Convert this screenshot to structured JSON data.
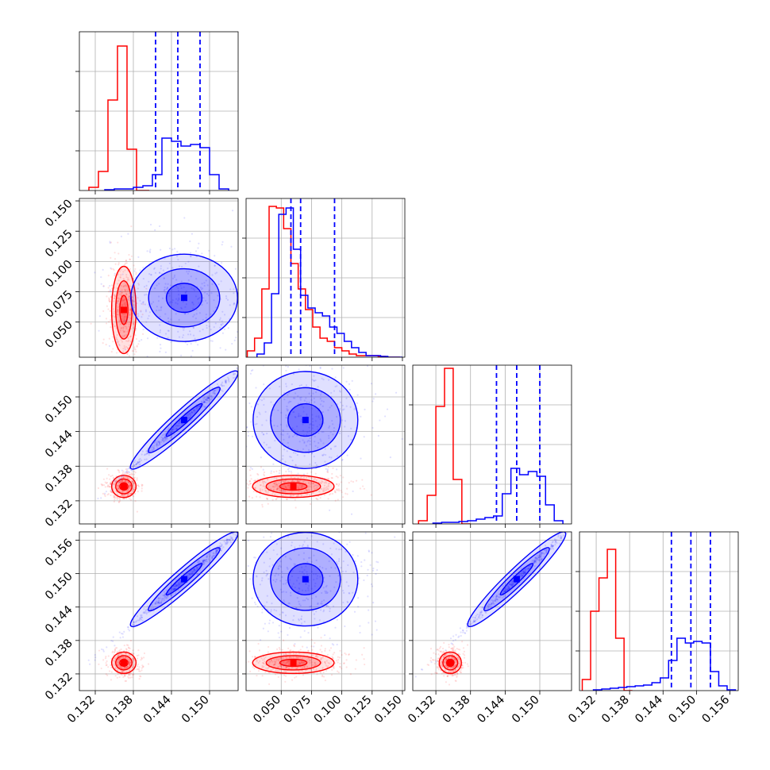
{
  "chart_data": {
    "type": "corner",
    "n_params": 4,
    "grid": true,
    "series": [
      {
        "color": "#ff0000",
        "hist": [
          {
            "edges": [
              0.131,
              0.1325,
              0.134,
              0.1355,
              0.137,
              0.1385,
              0.1405
            ],
            "counts": [
              0.02,
              0.12,
              0.57,
              0.91,
              0.26,
              0.0
            ]
          },
          {
            "edges": [
              0.022,
              0.028,
              0.034,
              0.04,
              0.046,
              0.052,
              0.058,
              0.064,
              0.07,
              0.076,
              0.082,
              0.088,
              0.094,
              0.1,
              0.106,
              0.112,
              0.118,
              0.124,
              0.13,
              0.136,
              0.142,
              0.148
            ],
            "counts": [
              0.04,
              0.12,
              0.43,
              0.95,
              0.94,
              0.81,
              0.59,
              0.43,
              0.3,
              0.19,
              0.12,
              0.1,
              0.06,
              0.04,
              0.02,
              0.01,
              0.01,
              0.01,
              0.005,
              0.0,
              0.0
            ]
          },
          {
            "edges": [
              0.129,
              0.1305,
              0.132,
              0.1335,
              0.135,
              0.1365,
              0.138
            ],
            "counts": [
              0.02,
              0.18,
              0.74,
              0.98,
              0.28,
              0.0
            ]
          },
          {
            "edges": [
              0.1295,
              0.131,
              0.1325,
              0.134,
              0.1355,
              0.137,
              0.1385
            ],
            "counts": [
              0.07,
              0.5,
              0.71,
              0.89,
              0.33,
              0.0
            ]
          }
        ],
        "scatter_centers": [
          {
            "x": 0.1365,
            "y": 0.06,
            "sx": 0.0008,
            "sy": 0.015
          },
          {
            "x": 0.1365,
            "y": 0.1345,
            "sx": 0.0008,
            "sy": 0.0008
          },
          {
            "x": 0.06,
            "y": 0.1345,
            "sx": 0.014,
            "sy": 0.0008
          },
          {
            "x": 0.1365,
            "y": 0.134,
            "sx": 0.0008,
            "sy": 0.0008
          },
          {
            "x": 0.06,
            "y": 0.134,
            "sx": 0.014,
            "sy": 0.0008
          },
          {
            "x": 0.1345,
            "y": 0.134,
            "sx": 0.0008,
            "sy": 0.0008
          }
        ]
      },
      {
        "color": "#0000ff",
        "hist": [
          {
            "edges": [
              0.1335,
              0.135,
              0.1365,
              0.138,
              0.1395,
              0.141,
              0.1425,
              0.144,
              0.1455,
              0.147,
              0.1485,
              0.15,
              0.1515,
              0.153
            ],
            "counts": [
              0.005,
              0.01,
              0.01,
              0.02,
              0.03,
              0.1,
              0.33,
              0.31,
              0.28,
              0.29,
              0.27,
              0.1,
              0.01
            ]
          },
          {
            "edges": [
              0.03,
              0.036,
              0.042,
              0.048,
              0.054,
              0.06,
              0.066,
              0.072,
              0.078,
              0.084,
              0.09,
              0.096,
              0.102,
              0.108,
              0.114,
              0.12,
              0.126,
              0.132,
              0.138,
              0.144,
              0.15
            ],
            "counts": [
              0.02,
              0.09,
              0.4,
              0.9,
              0.94,
              0.68,
              0.39,
              0.31,
              0.28,
              0.26,
              0.19,
              0.15,
              0.1,
              0.06,
              0.03,
              0.01,
              0.01,
              0.005,
              0.0,
              0.0
            ]
          },
          {
            "edges": [
              0.1315,
              0.133,
              0.1345,
              0.136,
              0.1375,
              0.139,
              0.1405,
              0.142,
              0.1435,
              0.145,
              0.1465,
              0.148,
              0.1495,
              0.151,
              0.1525,
              0.154
            ],
            "counts": [
              0.005,
              0.01,
              0.01,
              0.015,
              0.02,
              0.03,
              0.04,
              0.05,
              0.19,
              0.35,
              0.31,
              0.33,
              0.3,
              0.12,
              0.02
            ]
          },
          {
            "edges": [
              0.1315,
              0.133,
              0.1345,
              0.136,
              0.1375,
              0.139,
              0.1405,
              0.142,
              0.1435,
              0.145,
              0.1465,
              0.148,
              0.1495,
              0.151,
              0.1525,
              0.154,
              0.1555,
              0.157
            ],
            "counts": [
              0.005,
              0.01,
              0.015,
              0.02,
              0.025,
              0.03,
              0.035,
              0.05,
              0.08,
              0.19,
              0.33,
              0.3,
              0.31,
              0.3,
              0.12,
              0.03,
              0.005
            ]
          }
        ],
        "quantiles": [
          [
            0.1415,
            0.145,
            0.1485
          ],
          [
            0.058,
            0.066,
            0.094
          ],
          [
            0.1425,
            0.146,
            0.15
          ],
          [
            0.1455,
            0.149,
            0.1525
          ]
        ],
        "scatter_centers": [
          {
            "x": 0.146,
            "y": 0.07,
            "sx": 0.0035,
            "sy": 0.015
          },
          {
            "x": 0.146,
            "y": 0.146,
            "sx": 0.0035,
            "sy": 0.0035,
            "corr": true
          },
          {
            "x": 0.07,
            "y": 0.146,
            "sx": 0.018,
            "sy": 0.0035
          },
          {
            "x": 0.146,
            "y": 0.149,
            "sx": 0.0035,
            "sy": 0.0035,
            "corr": true
          },
          {
            "x": 0.07,
            "y": 0.149,
            "sx": 0.018,
            "sy": 0.0035
          },
          {
            "x": 0.146,
            "y": 0.149,
            "sx": 0.0035,
            "sy": 0.0035,
            "corr": true
          }
        ]
      }
    ],
    "axes": [
      {
        "range": [
          0.1295,
          0.1545
        ],
        "ticks": [
          "0.132",
          "0.138",
          "0.144",
          "0.150"
        ]
      },
      {
        "range": [
          0.021,
          0.152
        ],
        "ticks": [
          "0.050",
          "0.075",
          "0.100",
          "0.125",
          "0.150"
        ]
      },
      {
        "range": [
          0.128,
          0.1555
        ],
        "ticks": [
          "0.132",
          "0.138",
          "0.144",
          "0.150"
        ]
      },
      {
        "range": [
          0.129,
          0.1575
        ],
        "ticks": [
          "0.132",
          "0.138",
          "0.144",
          "0.150",
          "0.156"
        ]
      }
    ],
    "tick_values": [
      [
        0.132,
        0.138,
        0.144,
        0.15
      ],
      [
        0.05,
        0.075,
        0.1,
        0.125,
        0.15
      ],
      [
        0.132,
        0.138,
        0.144,
        0.15
      ],
      [
        0.132,
        0.138,
        0.144,
        0.15,
        0.156
      ]
    ]
  }
}
